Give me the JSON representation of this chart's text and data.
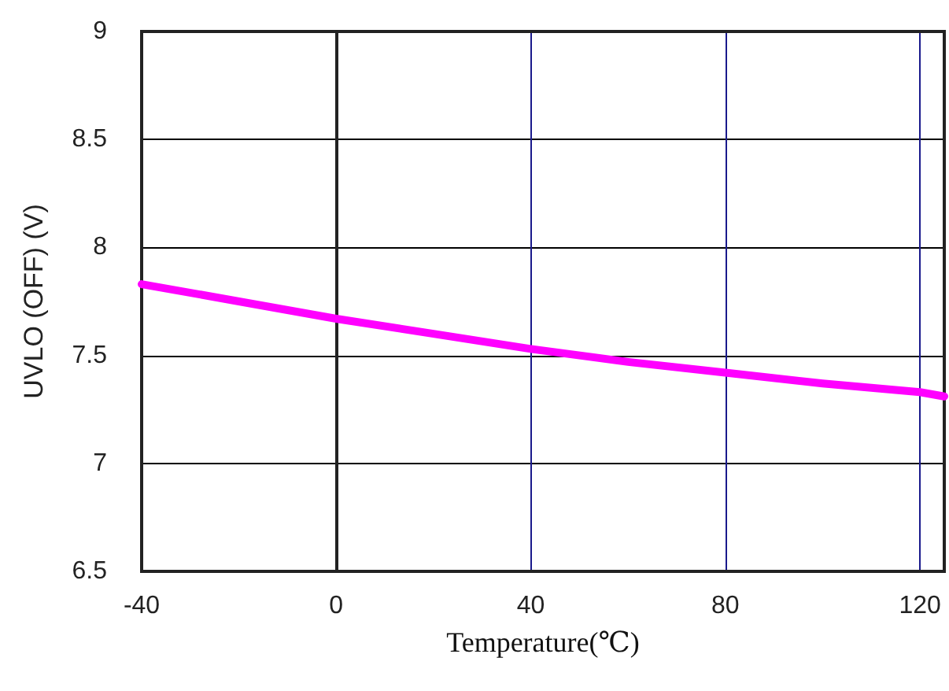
{
  "chart_data": {
    "type": "line",
    "xlabel": "Temperature(℃)",
    "ylabel": "UVLO (OFF) (V)",
    "x": [
      -40,
      -20,
      0,
      20,
      40,
      60,
      80,
      100,
      120,
      125
    ],
    "series": [
      {
        "color": "#ff00ff",
        "values": [
          7.83,
          7.75,
          7.67,
          7.6,
          7.53,
          7.47,
          7.42,
          7.37,
          7.33,
          7.31
        ]
      }
    ],
    "xlim": [
      -40,
      125
    ],
    "xticks": [
      -40,
      0,
      40,
      80,
      120
    ],
    "ylim": [
      6.5,
      9
    ],
    "yticks": [
      6.5,
      7,
      7.5,
      8,
      8.5,
      9
    ],
    "grid": true,
    "marker": "none",
    "line_style": "solid"
  }
}
